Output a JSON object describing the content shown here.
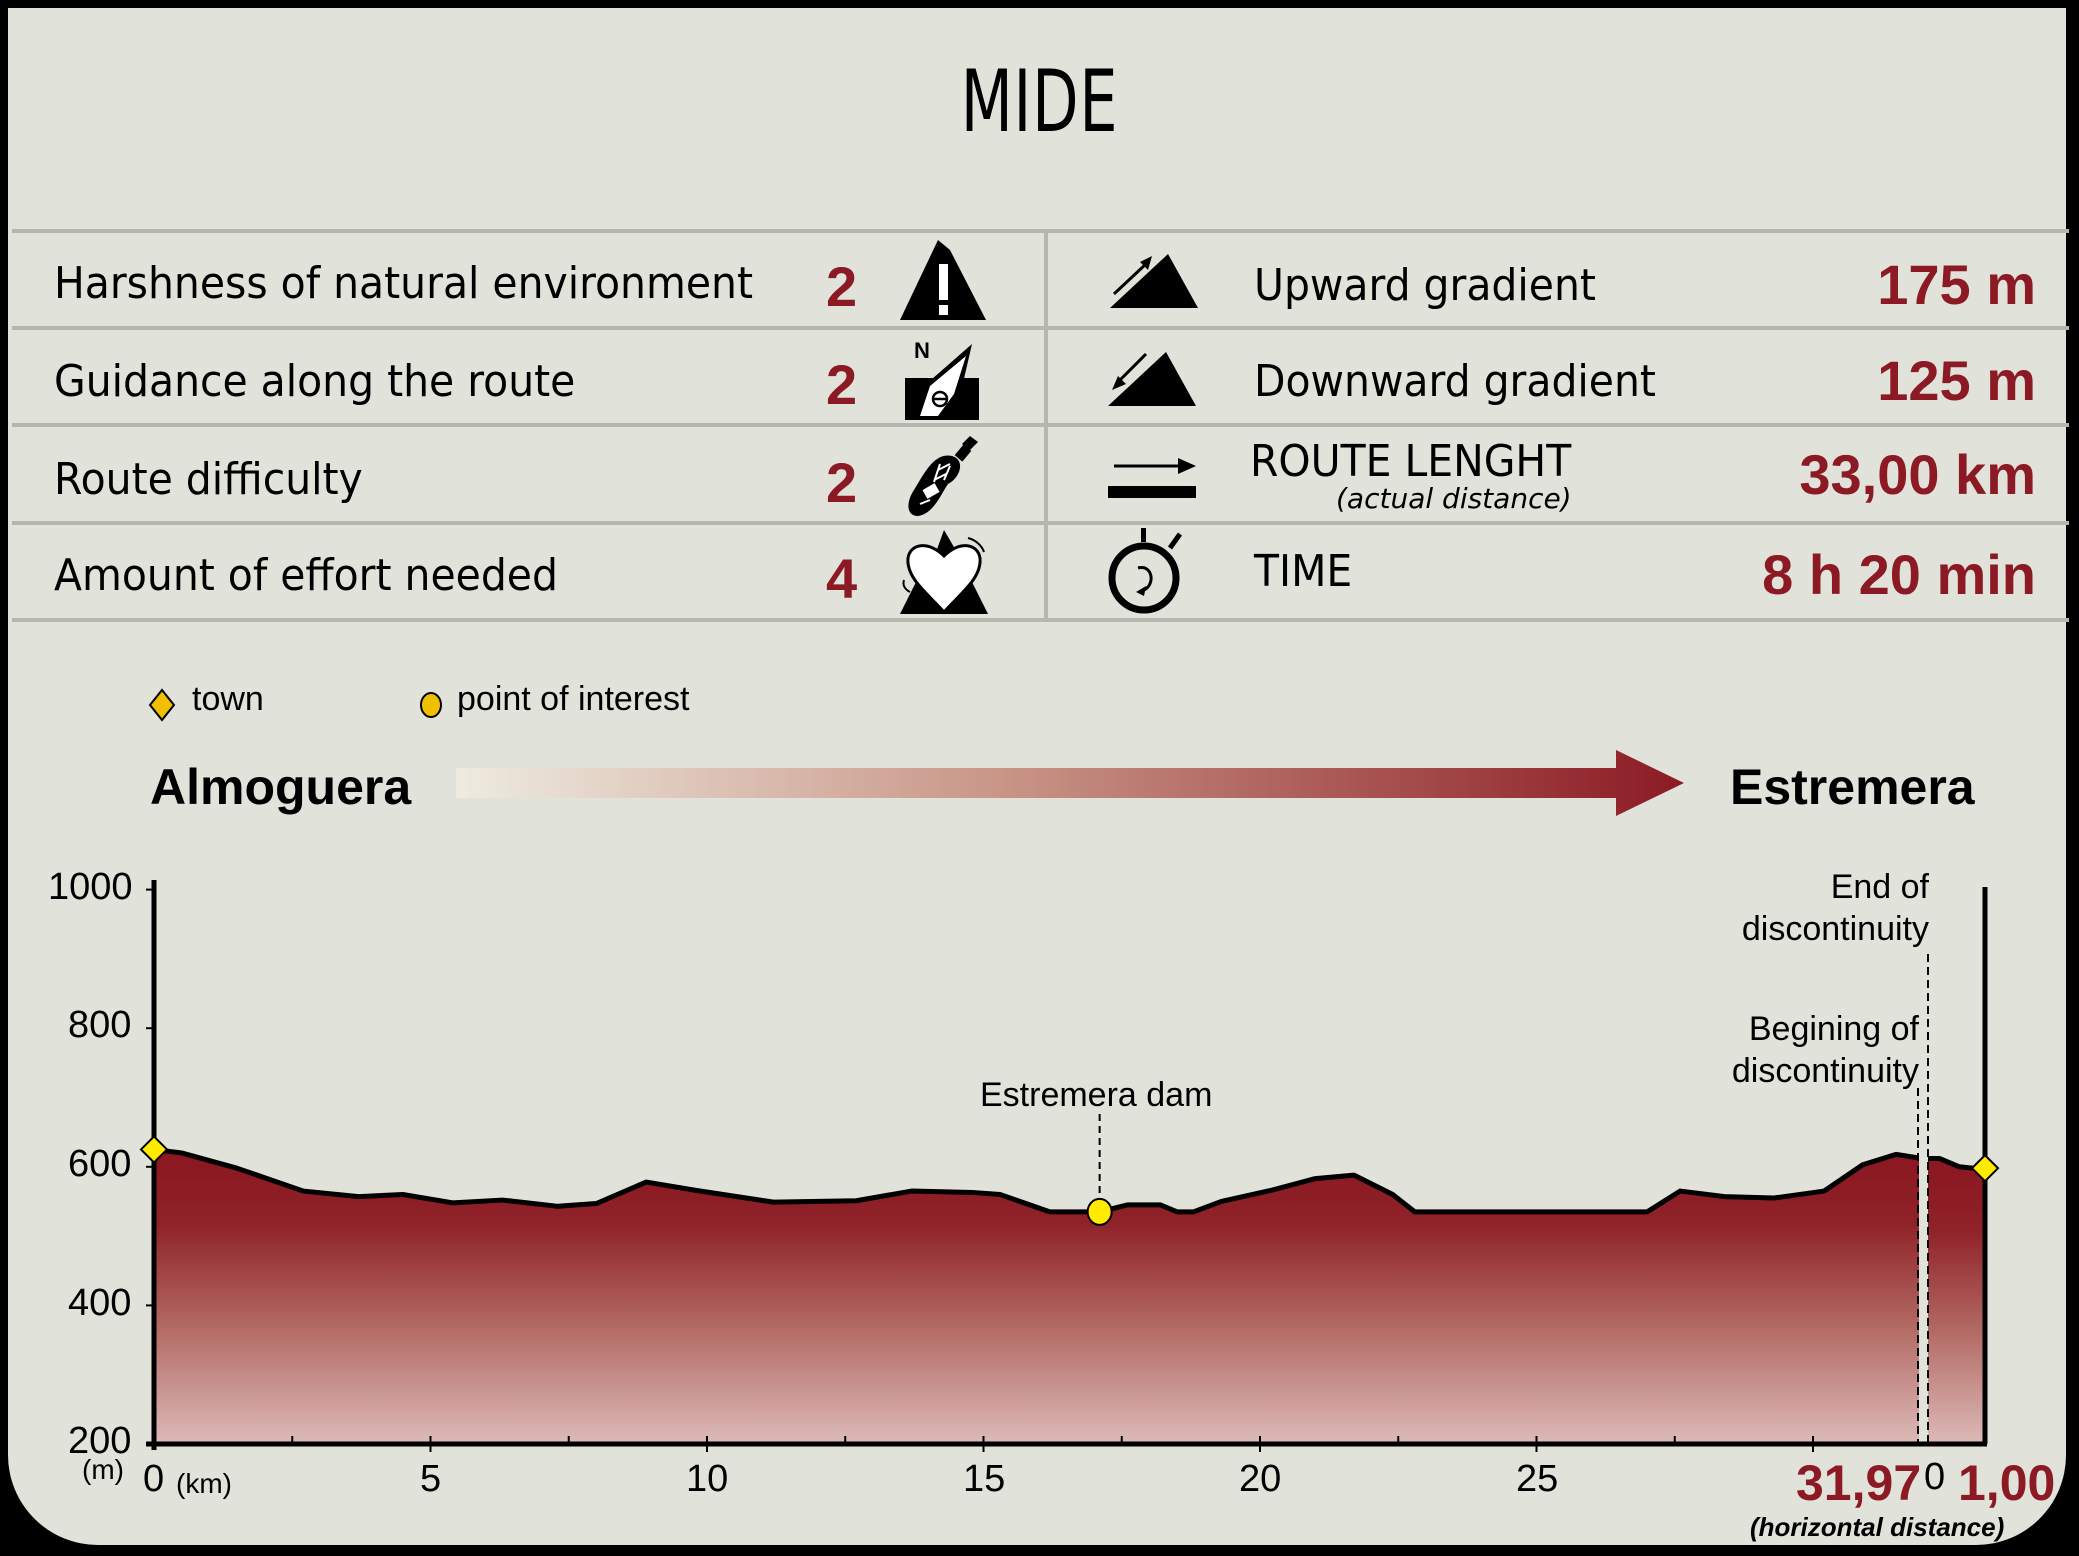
{
  "title": "MIDE",
  "mide": {
    "left_rows": [
      {
        "label": "Harshness of natural environment",
        "score": "2",
        "icon": "mountain-warning-icon"
      },
      {
        "label": "Guidance along the route",
        "score": "2",
        "icon": "compass-needle-icon"
      },
      {
        "label": "Route difficulty",
        "score": "2",
        "icon": "boot-sole-icon"
      },
      {
        "label": "Amount of effort needed",
        "score": "4",
        "icon": "heart-mountain-icon"
      }
    ],
    "right_rows": [
      {
        "label": "Upward gradient",
        "value": "175 m",
        "icon": "upward-gradient-icon"
      },
      {
        "label": "Downward gradient",
        "value": "125 m",
        "icon": "downward-gradient-icon"
      },
      {
        "label": "ROUTE LENGHT",
        "sublabel": "(actual distance)",
        "value": "33,00 km",
        "icon": "route-length-icon"
      },
      {
        "label": "TIME",
        "value": "8 h 20 min",
        "icon": "stopwatch-icon"
      }
    ]
  },
  "legend": {
    "town": "town",
    "poi": "point of interest"
  },
  "route": {
    "start": "Almoguera",
    "end": "Estremera"
  },
  "colors": {
    "accent": "#8b1a24",
    "background": "#e1e2da",
    "marker": "#ffea00",
    "divider": "#b5b6ae"
  },
  "chart_data": {
    "type": "area",
    "title": "Elevation profile Almoguera → Estremera",
    "xlabel": "(km)",
    "ylabel": "(m)",
    "ylim": [
      200,
      1000
    ],
    "yticks": [
      "1000",
      "800",
      "600",
      "400",
      "200"
    ],
    "xticks": [
      "0",
      "5",
      "10",
      "15",
      "20",
      "25"
    ],
    "x_end_label_first": "31,97",
    "x_restart_label": "0",
    "x_end_label_second": "1,00",
    "x_note": "(horizontal distance)",
    "segments": [
      {
        "name": "main",
        "x": [
          0,
          0.5,
          1.5,
          2.7,
          3.7,
          4.5,
          5.4,
          6.3,
          7.3,
          8.0,
          8.9,
          9.8,
          11.2,
          12.7,
          13.7,
          14.8,
          15.3,
          16.2,
          17.1,
          17.6,
          18.2,
          18.5,
          18.8,
          19.3,
          20.2,
          21.0,
          21.7,
          22.4,
          22.8,
          27.0,
          27.6,
          28.4,
          29.3,
          30.2,
          30.9,
          31.5,
          31.97
        ],
        "y": [
          625,
          620,
          598,
          565,
          557,
          560,
          548,
          552,
          543,
          547,
          578,
          566,
          549,
          551,
          565,
          563,
          560,
          535,
          535,
          545,
          545,
          535,
          535,
          550,
          566,
          583,
          588,
          560,
          535,
          535,
          565,
          557,
          555,
          565,
          603,
          618,
          612
        ]
      },
      {
        "name": "after_discontinuity",
        "x": [
          0,
          0.2,
          0.55,
          0.8,
          1.0
        ],
        "y": [
          612,
          612,
          600,
          598,
          598
        ]
      }
    ],
    "markers": [
      {
        "type": "town",
        "label": "Almoguera",
        "x": 0,
        "y": 625
      },
      {
        "type": "poi",
        "label": "Estremera dam",
        "x": 17.1,
        "y": 535
      },
      {
        "type": "town",
        "label": "Estremera",
        "x_second_segment": 1.0,
        "y": 598
      }
    ],
    "annotations": [
      {
        "text": "Estremera dam"
      },
      {
        "text_line1": "Begining of",
        "text_line2": "discontinuity",
        "x": 31.97
      },
      {
        "text_line1": "End of",
        "text_line2": "discontinuity",
        "x_second_segment": 0
      }
    ]
  }
}
